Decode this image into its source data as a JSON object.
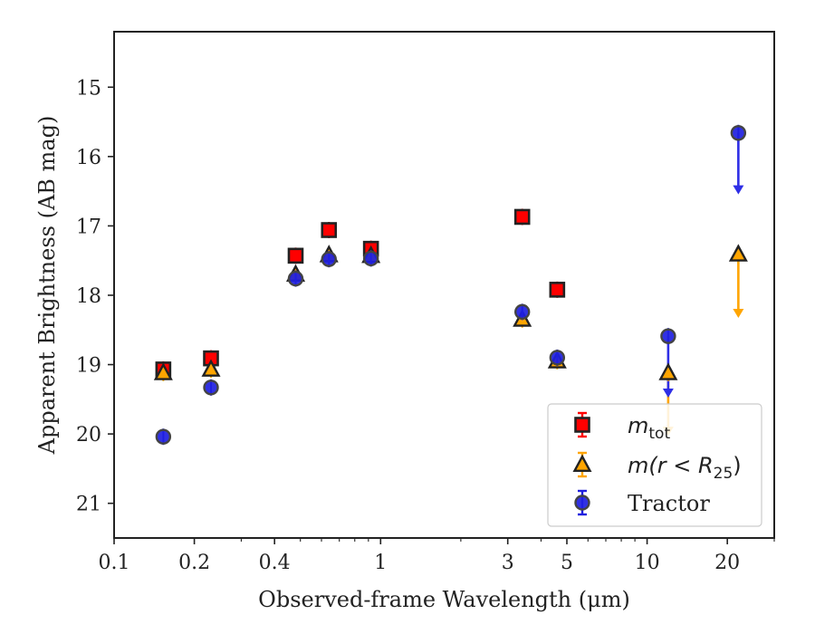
{
  "chart_data": {
    "type": "scatter",
    "xlabel": "Observed-frame Wavelength (μm)",
    "ylabel": "Apparent Brightness (AB mag)",
    "x_scale": "log",
    "y_inverted": true,
    "xlim": [
      0.1,
      30
    ],
    "ylim": [
      21.5,
      14.2
    ],
    "x_ticks": [
      {
        "value": 0.1,
        "label": "0.1"
      },
      {
        "value": 0.2,
        "label": "0.2"
      },
      {
        "value": 0.4,
        "label": "0.4"
      },
      {
        "value": 1,
        "label": "1"
      },
      {
        "value": 3,
        "label": "3"
      },
      {
        "value": 5,
        "label": "5"
      },
      {
        "value": 10,
        "label": "10"
      },
      {
        "value": 20,
        "label": "20"
      }
    ],
    "y_ticks": [
      {
        "value": 15,
        "label": "15"
      },
      {
        "value": 16,
        "label": "16"
      },
      {
        "value": 17,
        "label": "17"
      },
      {
        "value": 18,
        "label": "18"
      },
      {
        "value": 19,
        "label": "19"
      },
      {
        "value": 20,
        "label": "20"
      },
      {
        "value": 21,
        "label": "21"
      }
    ],
    "grid": false,
    "legend_position": "lower-right",
    "series": [
      {
        "name": "m_tot",
        "marker": "square",
        "color": "#ff0000",
        "edge_color": "#222222",
        "points": [
          {
            "x": 0.153,
            "y": 19.07
          },
          {
            "x": 0.231,
            "y": 18.91
          },
          {
            "x": 0.48,
            "y": 17.43
          },
          {
            "x": 0.64,
            "y": 17.06
          },
          {
            "x": 0.92,
            "y": 17.33
          },
          {
            "x": 3.4,
            "y": 16.87
          },
          {
            "x": 4.6,
            "y": 17.92
          }
        ]
      },
      {
        "name": "m(r<R25)",
        "marker": "triangle",
        "color": "#ffa500",
        "edge_color": "#222222",
        "points": [
          {
            "x": 0.153,
            "y": 19.12
          },
          {
            "x": 0.231,
            "y": 19.07
          },
          {
            "x": 0.48,
            "y": 17.7
          },
          {
            "x": 0.64,
            "y": 17.42
          },
          {
            "x": 0.92,
            "y": 17.43
          },
          {
            "x": 3.4,
            "y": 18.35
          },
          {
            "x": 4.6,
            "y": 18.95
          },
          {
            "x": 12.0,
            "y": 19.12,
            "upper_limit": true,
            "arrow_to": 20.0
          },
          {
            "x": 22.0,
            "y": 17.41,
            "upper_limit": true,
            "arrow_to": 18.3
          }
        ]
      },
      {
        "name": "Tractor",
        "marker": "circle",
        "color": "#1f1fdf",
        "edge_color": "#444444",
        "points": [
          {
            "x": 0.153,
            "y": 20.04
          },
          {
            "x": 0.231,
            "y": 19.33
          },
          {
            "x": 0.48,
            "y": 17.76
          },
          {
            "x": 0.64,
            "y": 17.48
          },
          {
            "x": 0.92,
            "y": 17.47
          },
          {
            "x": 3.4,
            "y": 18.24
          },
          {
            "x": 4.6,
            "y": 18.9
          },
          {
            "x": 12.0,
            "y": 18.59,
            "upper_limit": true,
            "arrow_to": 19.45
          },
          {
            "x": 22.0,
            "y": 15.66,
            "upper_limit": true,
            "arrow_to": 16.52
          }
        ]
      }
    ],
    "legend": {
      "entries": [
        {
          "label_main": "m",
          "label_sub": "tot"
        },
        {
          "label_main": "m(r < R",
          "label_sub": "25",
          "label_end": ")"
        },
        {
          "label_main": "Tractor",
          "label_sub": ""
        }
      ]
    }
  }
}
